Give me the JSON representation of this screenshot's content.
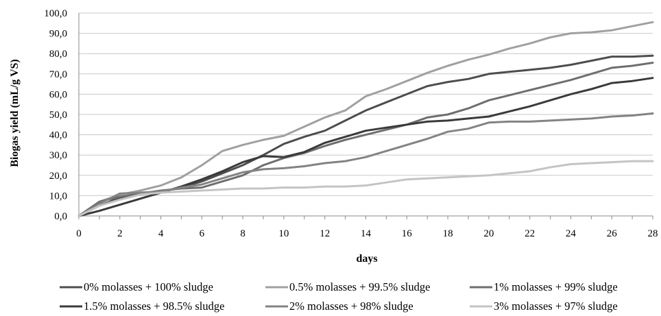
{
  "chart_data": {
    "type": "line",
    "title": "",
    "xlabel": "days",
    "ylabel": "Biogas yield (mL/g VS)",
    "xlim": [
      0,
      28
    ],
    "ylim": [
      0,
      100
    ],
    "x_ticks": [
      "0",
      "2",
      "4",
      "6",
      "8",
      "10",
      "12",
      "14",
      "16",
      "18",
      "20",
      "22",
      "24",
      "26",
      "28"
    ],
    "y_ticks": [
      "0,0",
      "10,0",
      "20,0",
      "30,0",
      "40,0",
      "50,0",
      "60,0",
      "70,0",
      "80,0",
      "90,0",
      "100,0"
    ],
    "grid": "horizontal",
    "legend_position": "bottom",
    "x": [
      0,
      1,
      2,
      3,
      4,
      5,
      6,
      7,
      8,
      9,
      10,
      11,
      12,
      13,
      14,
      15,
      16,
      17,
      18,
      19,
      20,
      21,
      22,
      23,
      24,
      25,
      26,
      27,
      28
    ],
    "series": [
      {
        "name": "0% molasses + 100% sludge",
        "color": "#4d4d4d",
        "values": [
          0,
          5,
          9,
          10.5,
          12,
          14,
          17,
          21,
          25,
          30,
          35.5,
          39,
          42,
          47,
          52,
          56,
          60,
          64,
          66,
          67.5,
          70,
          71,
          72,
          73,
          74.5,
          76.5,
          78.5,
          78.5,
          79
        ]
      },
      {
        "name": "0.5% molasses + 99.5% sludge",
        "color": "#a0a0a0",
        "values": [
          0,
          7,
          10.5,
          12.5,
          15,
          19,
          25,
          32,
          35,
          37.5,
          39.5,
          44,
          48.5,
          52,
          59,
          62.5,
          66.5,
          70.5,
          74,
          77,
          79.5,
          82.5,
          85,
          88,
          90,
          90.5,
          91.5,
          93.5,
          95.5
        ]
      },
      {
        "name": "1% molasses + 99% sludge",
        "color": "#6e6e6e",
        "values": [
          0,
          7,
          9.5,
          11,
          12.5,
          13.5,
          14,
          17,
          20,
          25,
          28.5,
          31,
          34.5,
          37.5,
          40,
          42.5,
          45,
          48.5,
          50,
          53,
          57,
          59.5,
          62,
          64.5,
          67,
          70,
          73,
          74,
          75.5
        ]
      },
      {
        "name": "1.5% molasses + 98.5% sludge",
        "color": "#3a3a3a",
        "values": [
          0,
          2.5,
          5.5,
          8.5,
          11.5,
          14.5,
          18,
          22,
          26.5,
          29.5,
          29,
          31.5,
          36,
          39,
          42,
          43.5,
          45,
          46.5,
          47,
          48,
          49,
          51.5,
          54,
          57,
          60,
          62.5,
          65.5,
          66.5,
          68
        ]
      },
      {
        "name": "2% molasses + 98% sludge",
        "color": "#838383",
        "values": [
          0,
          6,
          11,
          11.5,
          12,
          14,
          15.5,
          18.5,
          21.5,
          23,
          23.5,
          24.5,
          26,
          27,
          29,
          32,
          35,
          38,
          41.5,
          43,
          46,
          46.5,
          46.5,
          47,
          47.5,
          48,
          49,
          49.5,
          50.5
        ]
      },
      {
        "name": "3% molasses + 97% sludge",
        "color": "#c4c4c4",
        "values": [
          0,
          5,
          8,
          10.5,
          11.5,
          12,
          12.5,
          13,
          13.5,
          13.5,
          14,
          14,
          14.5,
          14.5,
          15,
          16.5,
          18,
          18.5,
          19,
          19.5,
          20,
          21,
          22,
          24,
          25.5,
          26,
          26.5,
          27,
          27
        ]
      }
    ]
  }
}
